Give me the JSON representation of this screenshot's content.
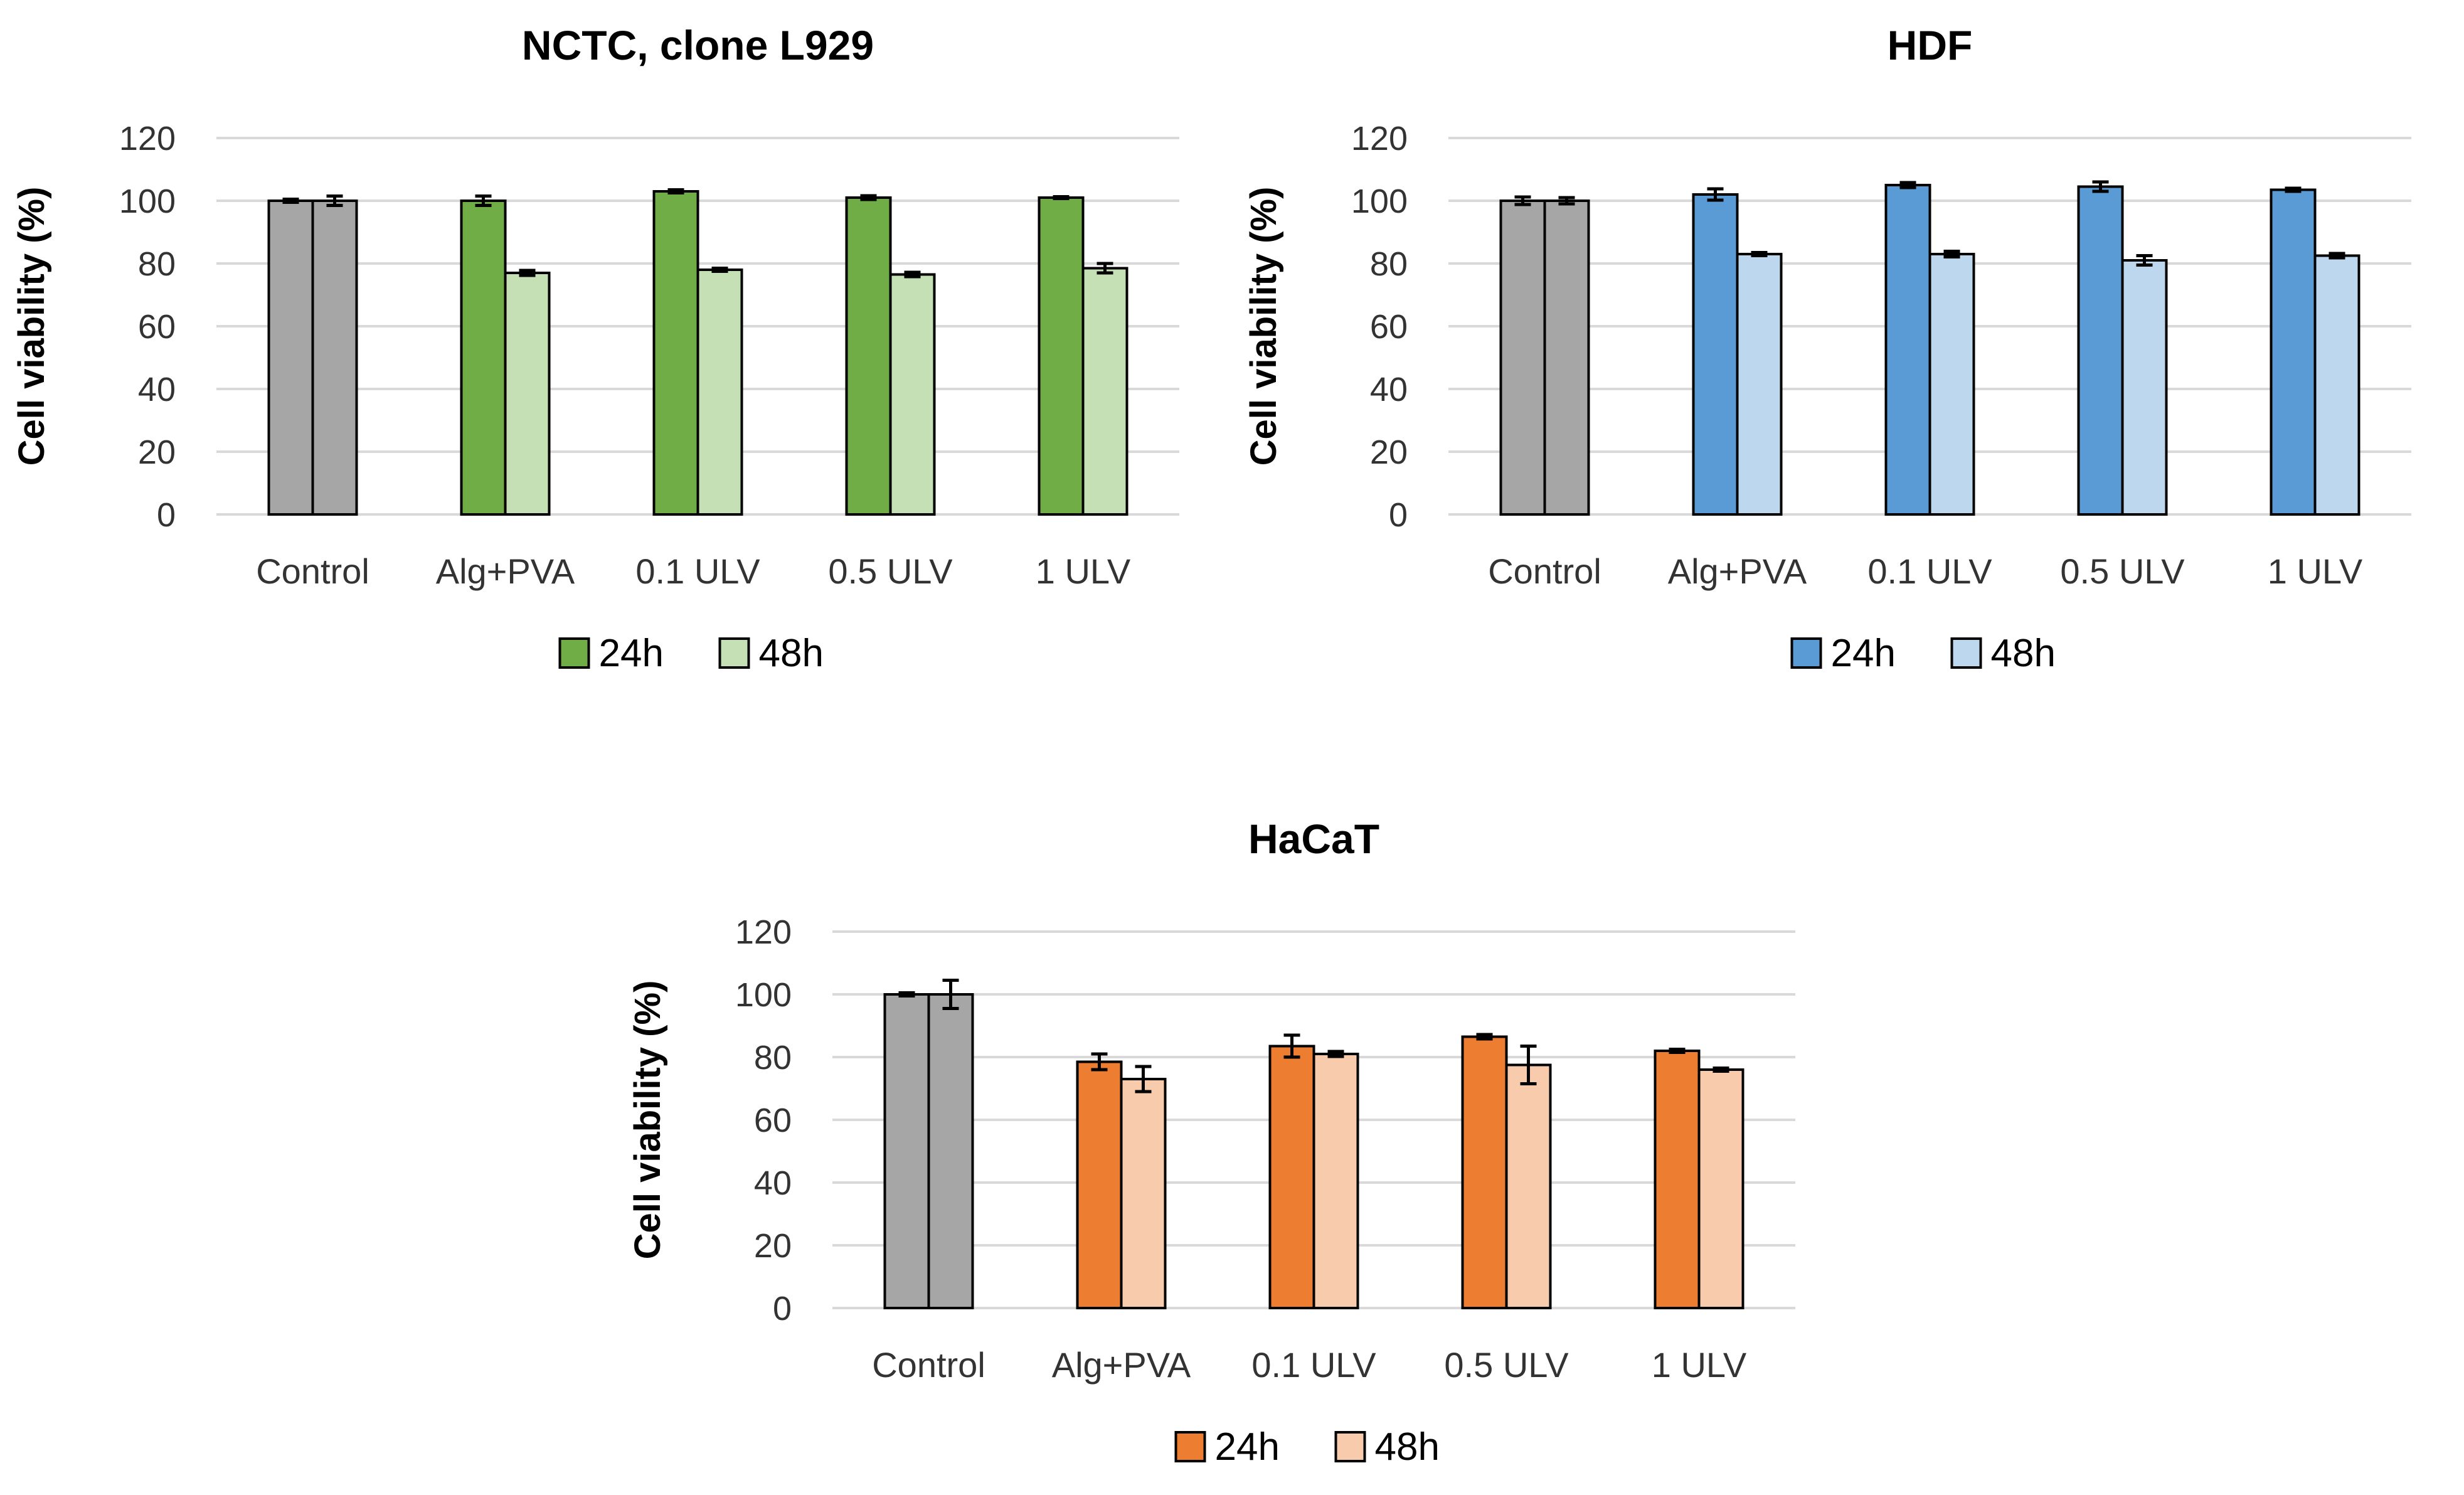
{
  "chart_data": [
    {
      "id": "nctc",
      "type": "bar",
      "title": "NCTC, clone L929",
      "xlabel": "",
      "ylabel": "Cell viability (%)",
      "ylim": [
        0,
        120
      ],
      "yticks": [
        0,
        20,
        40,
        60,
        80,
        100,
        120
      ],
      "grid": true,
      "legend": "bottom",
      "categories": [
        "Control",
        "Alg+PVA",
        "0.1 ULV",
        "0.5 ULV",
        "1 ULV"
      ],
      "control_color": "#a6a6a6",
      "series": [
        {
          "name": "24h",
          "color": "#70ad47",
          "values": [
            100,
            100,
            103,
            101,
            101
          ],
          "errors": [
            0.5,
            1.5,
            0.5,
            0.6,
            0.3
          ]
        },
        {
          "name": "48h",
          "color": "#c5e0b4",
          "values": [
            100,
            77,
            78,
            76.5,
            78.5
          ],
          "errors": [
            1.5,
            0.8,
            0.5,
            0.7,
            1.5
          ]
        }
      ]
    },
    {
      "id": "hdf",
      "type": "bar",
      "title": "HDF",
      "xlabel": "",
      "ylabel": "Cell viability (%)",
      "ylim": [
        0,
        120
      ],
      "yticks": [
        0,
        20,
        40,
        60,
        80,
        100,
        120
      ],
      "grid": true,
      "legend": "bottom",
      "categories": [
        "Control",
        "Alg+PVA",
        "0.1 ULV",
        "0.5 ULV",
        "1 ULV"
      ],
      "control_color": "#a6a6a6",
      "series": [
        {
          "name": "24h",
          "color": "#5b9bd5",
          "values": [
            100,
            102,
            105,
            104.5,
            103.5
          ],
          "errors": [
            1.2,
            1.8,
            0.8,
            1.5,
            0.5
          ]
        },
        {
          "name": "48h",
          "color": "#bdd7ee",
          "values": [
            100,
            83,
            83,
            81,
            82.5
          ],
          "errors": [
            1.0,
            0.5,
            0.9,
            1.5,
            0.7
          ]
        }
      ]
    },
    {
      "id": "hacat",
      "type": "bar",
      "title": "HaCaT",
      "xlabel": "",
      "ylabel": "Cell viability (%)",
      "ylim": [
        0,
        120
      ],
      "yticks": [
        0,
        20,
        40,
        60,
        80,
        100,
        120
      ],
      "grid": true,
      "legend": "bottom",
      "categories": [
        "Control",
        "Alg+PVA",
        "0.1 ULV",
        "0.5 ULV",
        "1 ULV"
      ],
      "control_color": "#a6a6a6",
      "series": [
        {
          "name": "24h",
          "color": "#ed7d31",
          "values": [
            100,
            78.5,
            83.5,
            86.5,
            82
          ],
          "errors": [
            0.5,
            2.5,
            3.5,
            0.7,
            0.5
          ]
        },
        {
          "name": "48h",
          "color": "#f8cbad",
          "values": [
            100,
            73,
            81,
            77.5,
            76
          ],
          "errors": [
            4.5,
            4.0,
            0.8,
            6.0,
            0.5
          ]
        }
      ]
    }
  ]
}
